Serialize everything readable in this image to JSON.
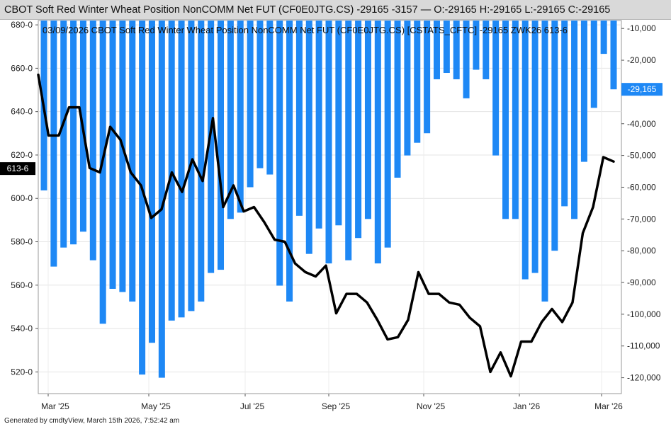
{
  "header": {
    "title": "CBOT Soft Red Winter Wheat Position NonCOMM Net FUT (CF0E0JTG.CS) -29165 -3157 — O:-29165 H:-29165 L:-29165 C:-29165"
  },
  "overlay_label": "03/09/2026 CBOT Soft Red Winter Wheat Position NonCOMM Net FUT (CF0E0JTG.CS) [CSTATS_CFTC] -29165 ZWK26 613-6",
  "footer": {
    "generated": "Generated by cmdtyView, March 15th 2026, 7:52:42 am"
  },
  "colors": {
    "bars": "#1e88f5",
    "price_line": "#000000",
    "title_bar": "#d9d9d9",
    "right_tag_bg": "#1e88f5",
    "left_tag_bg": "#000000"
  },
  "chart_data": {
    "type": "bar+line",
    "x_tick_labels": [
      "Mar '25",
      "May '25",
      "Jul '25",
      "Sep '25",
      "Nov '25",
      "Jan '26",
      "Mar '26"
    ],
    "left_axis": {
      "label": "",
      "ticks": [
        "520-0",
        "540-0",
        "560-0",
        "580-0",
        "600-0",
        "620-0",
        "640-0",
        "660-0",
        "680-0"
      ],
      "range": [
        510,
        682
      ],
      "last_value_label": "613-6"
    },
    "right_axis": {
      "label": "",
      "ticks": [
        "-10,000",
        "-20,000",
        "-30,000",
        "-40,000",
        "-50,000",
        "-60,000",
        "-70,000",
        "-80,000",
        "-90,000",
        "-100,000",
        "-110,000",
        "-120,000"
      ],
      "range": [
        -125000,
        -7500
      ],
      "last_value_label": "-29,165"
    },
    "grid": true,
    "series": [
      {
        "name": "CBOT Soft Red Winter Wheat Position NonCOMM Net FUT (CF0E0JTG.CS)",
        "type": "bar",
        "axis": "right",
        "values": [
          -61000,
          -85000,
          -79000,
          -78000,
          -74000,
          -83000,
          -103000,
          -92000,
          -93000,
          -96000,
          -119000,
          -109000,
          -120000,
          -102000,
          -101000,
          -99000,
          -96000,
          -87000,
          -86000,
          -70000,
          -68000,
          -60000,
          -54000,
          -56000,
          -91000,
          -96000,
          -69000,
          -81000,
          -73000,
          -84000,
          -72000,
          -83000,
          -76000,
          -70000,
          -84000,
          -79000,
          -57000,
          -50000,
          -46000,
          -43000,
          -26000,
          -24000,
          -26000,
          -32000,
          -23000,
          -26000,
          -50000,
          -70000,
          -70000,
          -89000,
          -87000,
          -96000,
          -80000,
          -66000,
          -70000,
          -52000,
          -35000,
          -18000,
          -29165
        ]
      },
      {
        "name": "ZWK26",
        "type": "line",
        "axis": "left",
        "values": [
          657,
          629,
          629,
          642,
          642,
          614,
          612,
          633,
          627,
          612,
          606,
          591,
          595,
          612,
          603,
          618,
          608,
          637,
          596,
          606,
          594,
          596,
          589,
          581,
          580,
          570,
          566,
          564,
          569,
          547,
          556,
          556,
          552,
          544,
          535,
          536,
          544,
          566,
          556,
          556,
          552,
          551,
          545,
          541,
          520,
          529,
          518,
          534,
          534,
          543,
          549,
          543,
          552,
          584,
          596,
          619,
          617
        ]
      }
    ]
  }
}
